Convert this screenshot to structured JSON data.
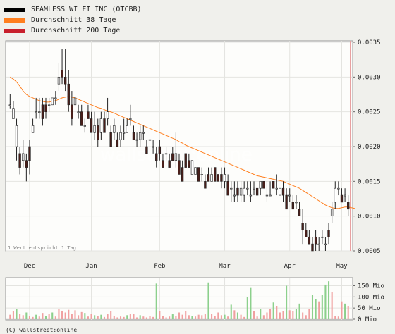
{
  "legend": [
    {
      "label": "SEAMLESS WI FI INC (OTCBB)",
      "color": "#000000"
    },
    {
      "label": "Durchschnitt 38 Tage",
      "color": "#ff7f1f"
    },
    {
      "label": "Durchschnitt 200 Tage",
      "color": "#c8202c"
    }
  ],
  "footnote": "1 Wert entspricht 1 Tag",
  "watermark": "wallstreet:online",
  "copyright": "(C) wallstreet:online",
  "chart_data": {
    "type": "candlestick",
    "price_axis": {
      "min": 0.0005,
      "max": 0.0035,
      "ticks": [
        "0.0005",
        "0.0010",
        "0.0015",
        "0.0020",
        "0.0025",
        "0.0030",
        "0.0035"
      ]
    },
    "month_labels": [
      {
        "label": "Dec",
        "index": 6
      },
      {
        "label": "Jan",
        "index": 25
      },
      {
        "label": "Feb",
        "index": 46
      },
      {
        "label": "Mar",
        "index": 66
      },
      {
        "label": "Apr",
        "index": 86
      },
      {
        "label": "May",
        "index": 102
      }
    ],
    "volume_axis": {
      "min": 0,
      "max": 180,
      "ticks": [
        "0 Mio",
        "50 Mio",
        "100 Mio",
        "150 Mio"
      ]
    },
    "candles": [
      [
        0.0026,
        0.00275,
        0.00255,
        0.0026
      ],
      [
        0.0024,
        0.00265,
        0.0024,
        0.00255
      ],
      [
        0.002,
        0.0024,
        0.0018,
        0.0023
      ],
      [
        0.0019,
        0.002,
        0.0016,
        0.0017
      ],
      [
        0.0018,
        0.0021,
        0.0017,
        0.0019
      ],
      [
        0.0018,
        0.0019,
        0.0015,
        0.0017
      ],
      [
        0.002,
        0.0021,
        0.0016,
        0.0018
      ],
      [
        0.0022,
        0.0024,
        0.0022,
        0.0023
      ],
      [
        0.0025,
        0.0027,
        0.0024,
        0.0025
      ],
      [
        0.0025,
        0.0027,
        0.0024,
        0.0025
      ],
      [
        0.0026,
        0.0027,
        0.0023,
        0.0024
      ],
      [
        0.0026,
        0.0027,
        0.0024,
        0.0025
      ],
      [
        0.0026,
        0.0027,
        0.0025,
        0.0026
      ],
      [
        0.0026,
        0.0027,
        0.0026,
        0.0027
      ],
      [
        0.0027,
        0.0028,
        0.0026,
        0.0027
      ],
      [
        0.0029,
        0.0032,
        0.0028,
        0.003
      ],
      [
        0.0031,
        0.0034,
        0.0029,
        0.003
      ],
      [
        0.003,
        0.0034,
        0.0028,
        0.0029
      ],
      [
        0.0029,
        0.0031,
        0.0025,
        0.0026
      ],
      [
        0.0026,
        0.0028,
        0.0023,
        0.0024
      ],
      [
        0.0026,
        0.0029,
        0.0025,
        0.0027
      ],
      [
        0.0025,
        0.0026,
        0.0024,
        0.0025
      ],
      [
        0.0025,
        0.0026,
        0.0023,
        0.0023
      ],
      [
        0.0023,
        0.0024,
        0.0022,
        0.0023
      ],
      [
        0.0025,
        0.0026,
        0.0024,
        0.0024
      ],
      [
        0.0024,
        0.0025,
        0.0022,
        0.0022
      ],
      [
        0.0022,
        0.0025,
        0.0021,
        0.0023
      ],
      [
        0.0023,
        0.0024,
        0.002,
        0.0021
      ],
      [
        0.0022,
        0.0025,
        0.0021,
        0.0024
      ],
      [
        0.0024,
        0.0025,
        0.0022,
        0.0022
      ],
      [
        0.0024,
        0.0027,
        0.0023,
        0.0025
      ],
      [
        0.0022,
        0.0023,
        0.002,
        0.002
      ],
      [
        0.0022,
        0.0024,
        0.0021,
        0.0023
      ],
      [
        0.0021,
        0.0022,
        0.002,
        0.002
      ],
      [
        0.0021,
        0.0023,
        0.002,
        0.0022
      ],
      [
        0.0022,
        0.0024,
        0.0021,
        0.0022
      ],
      [
        0.0022,
        0.0024,
        0.0022,
        0.0023
      ],
      [
        0.0024,
        0.0026,
        0.0023,
        0.0024
      ],
      [
        0.0022,
        0.0023,
        0.0021,
        0.0021
      ],
      [
        0.0021,
        0.0022,
        0.002,
        0.0021
      ],
      [
        0.0021,
        0.0023,
        0.002,
        0.0022
      ],
      [
        0.0022,
        0.0023,
        0.0021,
        0.0022
      ],
      [
        0.002,
        0.0021,
        0.0019,
        0.0019
      ],
      [
        0.0021,
        0.0022,
        0.002,
        0.0021
      ],
      [
        0.002,
        0.0021,
        0.0019,
        0.002
      ],
      [
        0.0019,
        0.002,
        0.0017,
        0.0018
      ],
      [
        0.002,
        0.0021,
        0.0018,
        0.0019
      ],
      [
        0.0018,
        0.0019,
        0.0017,
        0.0017
      ],
      [
        0.0019,
        0.002,
        0.0018,
        0.0019
      ],
      [
        0.0018,
        0.0019,
        0.0017,
        0.0017
      ],
      [
        0.0019,
        0.002,
        0.0018,
        0.0018
      ],
      [
        0.0018,
        0.0022,
        0.0017,
        0.0019
      ],
      [
        0.0018,
        0.0019,
        0.0016,
        0.0016
      ],
      [
        0.0017,
        0.0018,
        0.0015,
        0.0015
      ],
      [
        0.0019,
        0.0019,
        0.0017,
        0.0017
      ],
      [
        0.0018,
        0.0019,
        0.0017,
        0.0017
      ],
      [
        0.0016,
        0.0018,
        0.0016,
        0.0018
      ],
      [
        0.0016,
        0.0017,
        0.0016,
        0.0017
      ],
      [
        0.0017,
        0.0017,
        0.0015,
        0.0015
      ],
      [
        0.0016,
        0.0017,
        0.0015,
        0.0016
      ],
      [
        0.0015,
        0.0016,
        0.0014,
        0.0014
      ],
      [
        0.0016,
        0.0017,
        0.0015,
        0.0015
      ],
      [
        0.0015,
        0.0017,
        0.0015,
        0.0016
      ],
      [
        0.0017,
        0.0017,
        0.0015,
        0.0015
      ],
      [
        0.0016,
        0.0016,
        0.0015,
        0.0015
      ],
      [
        0.0016,
        0.0017,
        0.0014,
        0.0015
      ],
      [
        0.0015,
        0.0017,
        0.0014,
        0.0016
      ],
      [
        0.0015,
        0.0016,
        0.0013,
        0.0013
      ],
      [
        0.0014,
        0.0015,
        0.0012,
        0.0014
      ],
      [
        0.0013,
        0.0015,
        0.0012,
        0.0013
      ],
      [
        0.0014,
        0.0015,
        0.0012,
        0.0013
      ],
      [
        0.0013,
        0.0015,
        0.0012,
        0.0014
      ],
      [
        0.0013,
        0.0015,
        0.0012,
        0.0014
      ],
      [
        0.0014,
        0.0015,
        0.0013,
        0.0014
      ],
      [
        0.0013,
        0.0015,
        0.0012,
        0.0013
      ],
      [
        0.0014,
        0.0015,
        0.0013,
        0.0014
      ],
      [
        0.0014,
        0.0014,
        0.0013,
        0.0013
      ],
      [
        0.0014,
        0.0015,
        0.0013,
        0.0015
      ],
      [
        0.0015,
        0.0015,
        0.0014,
        0.0014
      ],
      [
        0.0013,
        0.0015,
        0.0012,
        0.0013
      ],
      [
        0.0013,
        0.0015,
        0.0013,
        0.0013
      ],
      [
        0.0015,
        0.0015,
        0.0014,
        0.0014
      ],
      [
        0.0014,
        0.0016,
        0.0013,
        0.0014
      ],
      [
        0.0013,
        0.0014,
        0.0013,
        0.0014
      ],
      [
        0.0014,
        0.0015,
        0.0012,
        0.0013
      ],
      [
        0.0013,
        0.0014,
        0.0011,
        0.0011
      ],
      [
        0.0013,
        0.0014,
        0.0012,
        0.0013
      ],
      [
        0.0012,
        0.0013,
        0.0011,
        0.0011
      ],
      [
        0.0012,
        0.0013,
        0.0011,
        0.0012
      ],
      [
        0.0011,
        0.0012,
        0.001,
        0.001
      ],
      [
        0.0009,
        0.0011,
        0.0006,
        0.0008
      ],
      [
        0.0008,
        0.0009,
        0.0007,
        0.0007
      ],
      [
        0.0007,
        0.0008,
        0.0006,
        0.0006
      ],
      [
        0.0006,
        0.0007,
        0.0005,
        0.0005
      ],
      [
        0.0007,
        0.0008,
        0.0005,
        0.0006
      ],
      [
        0.0006,
        0.0007,
        0.0005,
        0.0006
      ],
      [
        0.0007,
        0.0008,
        0.0006,
        0.0007
      ],
      [
        0.0006,
        0.0007,
        0.0005,
        0.0006
      ],
      [
        0.0008,
        0.0009,
        0.0006,
        0.0007
      ],
      [
        0.001,
        0.0012,
        0.0009,
        0.0011
      ],
      [
        0.0012,
        0.0015,
        0.0011,
        0.0014
      ],
      [
        0.0014,
        0.0015,
        0.0013,
        0.0014
      ],
      [
        0.0013,
        0.0014,
        0.0012,
        0.0012
      ],
      [
        0.0013,
        0.0014,
        0.0012,
        0.0013
      ],
      [
        0.0012,
        0.0013,
        0.001,
        0.0011
      ]
    ],
    "ma38": [
      0.003,
      0.00297,
      0.00293,
      0.00287,
      0.0028,
      0.00275,
      0.00272,
      0.0027,
      0.00268,
      0.00266,
      0.00265,
      0.00264,
      0.00264,
      0.00265,
      0.00266,
      0.00268,
      0.0027,
      0.00271,
      0.00272,
      0.00271,
      0.0027,
      0.00268,
      0.00266,
      0.00264,
      0.00262,
      0.0026,
      0.00258,
      0.00256,
      0.00255,
      0.00253,
      0.00251,
      0.0025,
      0.00248,
      0.00246,
      0.00244,
      0.00242,
      0.0024,
      0.00238,
      0.00236,
      0.00234,
      0.00232,
      0.0023,
      0.00228,
      0.00226,
      0.00224,
      0.00222,
      0.0022,
      0.00218,
      0.00216,
      0.00214,
      0.00212,
      0.0021,
      0.00207,
      0.00205,
      0.00202,
      0.002,
      0.00198,
      0.00196,
      0.00194,
      0.00192,
      0.0019,
      0.00188,
      0.00186,
      0.00184,
      0.00182,
      0.0018,
      0.00178,
      0.00176,
      0.00174,
      0.00172,
      0.0017,
      0.00168,
      0.00166,
      0.00164,
      0.00162,
      0.0016,
      0.00158,
      0.00157,
      0.00156,
      0.00155,
      0.00154,
      0.00153,
      0.00152,
      0.00151,
      0.0015,
      0.00148,
      0.00146,
      0.00144,
      0.00142,
      0.0014,
      0.00137,
      0.00134,
      0.00131,
      0.00128,
      0.00125,
      0.00122,
      0.00119,
      0.00116,
      0.00114,
      0.00112,
      0.00111,
      0.00111,
      0.00112,
      0.00113,
      0.00113,
      0.00112,
      0.00111
    ],
    "volumes": [
      {
        "v": 20,
        "up": false
      },
      {
        "v": 35,
        "up": false
      },
      {
        "v": 45,
        "up": true
      },
      {
        "v": 25,
        "up": false
      },
      {
        "v": 18,
        "up": false
      },
      {
        "v": 30,
        "up": true
      },
      {
        "v": 15,
        "up": false
      },
      {
        "v": 10,
        "up": false
      },
      {
        "v": 20,
        "up": true
      },
      {
        "v": 12,
        "up": false
      },
      {
        "v": 28,
        "up": false
      },
      {
        "v": 15,
        "up": true
      },
      {
        "v": 22,
        "up": false
      },
      {
        "v": 30,
        "up": true
      },
      {
        "v": 12,
        "up": false
      },
      {
        "v": 45,
        "up": false
      },
      {
        "v": 38,
        "up": false
      },
      {
        "v": 30,
        "up": false
      },
      {
        "v": 42,
        "up": false
      },
      {
        "v": 25,
        "up": false
      },
      {
        "v": 40,
        "up": false
      },
      {
        "v": 18,
        "up": false
      },
      {
        "v": 32,
        "up": false
      },
      {
        "v": 28,
        "up": true
      },
      {
        "v": 12,
        "up": false
      },
      {
        "v": 25,
        "up": false
      },
      {
        "v": 18,
        "up": true
      },
      {
        "v": 15,
        "up": false
      },
      {
        "v": 20,
        "up": true
      },
      {
        "v": 10,
        "up": false
      },
      {
        "v": 22,
        "up": false
      },
      {
        "v": 35,
        "up": false
      },
      {
        "v": 15,
        "up": false
      },
      {
        "v": 8,
        "up": false
      },
      {
        "v": 12,
        "up": false
      },
      {
        "v": 10,
        "up": false
      },
      {
        "v": 18,
        "up": true
      },
      {
        "v": 25,
        "up": false
      },
      {
        "v": 22,
        "up": false
      },
      {
        "v": 8,
        "up": false
      },
      {
        "v": 18,
        "up": true
      },
      {
        "v": 12,
        "up": false
      },
      {
        "v": 8,
        "up": false
      },
      {
        "v": 15,
        "up": false
      },
      {
        "v": 10,
        "up": false
      },
      {
        "v": 160,
        "up": true
      },
      {
        "v": 35,
        "up": false
      },
      {
        "v": 15,
        "up": false
      },
      {
        "v": 8,
        "up": false
      },
      {
        "v": 12,
        "up": false
      },
      {
        "v": 22,
        "up": true
      },
      {
        "v": 15,
        "up": false
      },
      {
        "v": 30,
        "up": false
      },
      {
        "v": 20,
        "up": false
      },
      {
        "v": 35,
        "up": false
      },
      {
        "v": 18,
        "up": false
      },
      {
        "v": 15,
        "up": true
      },
      {
        "v": 12,
        "up": false
      },
      {
        "v": 20,
        "up": false
      },
      {
        "v": 18,
        "up": false
      },
      {
        "v": 22,
        "up": false
      },
      {
        "v": 165,
        "up": true
      },
      {
        "v": 25,
        "up": false
      },
      {
        "v": 15,
        "up": false
      },
      {
        "v": 30,
        "up": false
      },
      {
        "v": 18,
        "up": false
      },
      {
        "v": 20,
        "up": true
      },
      {
        "v": 12,
        "up": false
      },
      {
        "v": 65,
        "up": true
      },
      {
        "v": 40,
        "up": false
      },
      {
        "v": 30,
        "up": true
      },
      {
        "v": 20,
        "up": false
      },
      {
        "v": 10,
        "up": false
      },
      {
        "v": 100,
        "up": true
      },
      {
        "v": 140,
        "up": true
      },
      {
        "v": 35,
        "up": false
      },
      {
        "v": 12,
        "up": false
      },
      {
        "v": 45,
        "up": true
      },
      {
        "v": 18,
        "up": false
      },
      {
        "v": 30,
        "up": false
      },
      {
        "v": 45,
        "up": false
      },
      {
        "v": 75,
        "up": true
      },
      {
        "v": 60,
        "up": false
      },
      {
        "v": 30,
        "up": false
      },
      {
        "v": 35,
        "up": false
      },
      {
        "v": 150,
        "up": true
      },
      {
        "v": 40,
        "up": false
      },
      {
        "v": 35,
        "up": false
      },
      {
        "v": 45,
        "up": true
      },
      {
        "v": 70,
        "up": true
      },
      {
        "v": 30,
        "up": false
      },
      {
        "v": 18,
        "up": false
      },
      {
        "v": 45,
        "up": false
      },
      {
        "v": 110,
        "up": true
      },
      {
        "v": 90,
        "up": true
      },
      {
        "v": 80,
        "up": false
      },
      {
        "v": 110,
        "up": true
      },
      {
        "v": 155,
        "up": true
      },
      {
        "v": 170,
        "up": true
      },
      {
        "v": 120,
        "up": false
      },
      {
        "v": 15,
        "up": false
      },
      {
        "v": 12,
        "up": false
      },
      {
        "v": 80,
        "up": false
      },
      {
        "v": 70,
        "up": true
      },
      {
        "v": 60,
        "up": false
      }
    ]
  }
}
